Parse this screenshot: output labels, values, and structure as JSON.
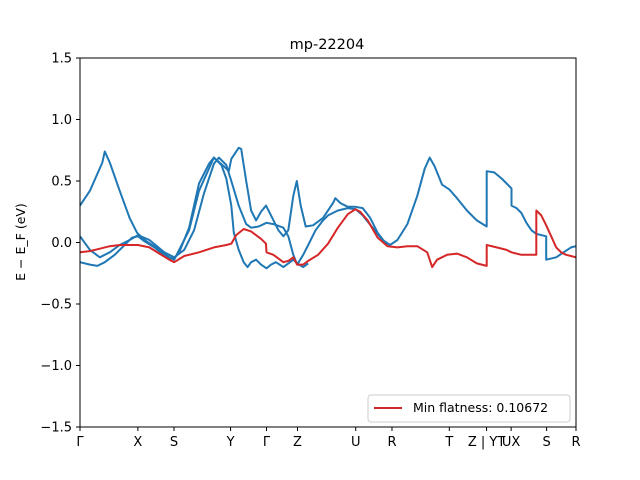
{
  "chart_data": {
    "type": "line",
    "title": "mp-22204",
    "xlabel": "",
    "ylabel": "E − E_F (eV)",
    "ylim": [
      -1.5,
      1.5
    ],
    "yticks": [
      -1.5,
      -1.0,
      -0.5,
      0.0,
      0.5,
      1.0,
      1.5
    ],
    "ytick_labels": [
      "−1.5",
      "−1.0",
      "−0.5",
      "0.0",
      "0.5",
      "1.0",
      "1.5"
    ],
    "xlim": [
      0,
      1
    ],
    "xticks": [
      0.0,
      0.1167,
      0.1895,
      0.3036,
      0.376,
      0.4385,
      0.5559,
      0.629,
      0.7446,
      0.8197,
      0.8692,
      0.9408,
      1.0
    ],
    "xtick_labels": [
      "Γ",
      "X",
      "S",
      "Y",
      "Γ",
      "Z",
      "U",
      "R",
      "T",
      "Z | YT",
      "UX",
      "S",
      "R"
    ],
    "legend": {
      "entries": [
        "Min flatness: 0.10672"
      ],
      "placement": "lower right"
    },
    "colors": {
      "band": "#1f77b4",
      "flat_band": "#d62728"
    },
    "series": [
      {
        "color": "#1f77b4",
        "points": [
          [
            0,
            0.3
          ],
          [
            0.02,
            0.42
          ],
          [
            0.045,
            0.65
          ],
          [
            0.05,
            0.74
          ],
          [
            0.06,
            0.65
          ],
          [
            0.08,
            0.42
          ],
          [
            0.1,
            0.2
          ],
          [
            0.115,
            0.08
          ],
          [
            0.13,
            0.02
          ],
          [
            0.16,
            -0.06
          ],
          [
            0.18,
            -0.12
          ],
          [
            0.19,
            -0.14
          ],
          [
            0.22,
            0.1
          ],
          [
            0.24,
            0.42
          ],
          [
            0.27,
            0.69
          ],
          [
            0.29,
            0.62
          ],
          [
            0.3,
            0.58
          ],
          [
            0.305,
            0.68
          ],
          [
            0.32,
            0.77
          ],
          [
            0.325,
            0.76
          ],
          [
            0.335,
            0.5
          ],
          [
            0.345,
            0.26
          ],
          [
            0.355,
            0.18
          ],
          [
            0.365,
            0.25
          ],
          [
            0.375,
            0.3
          ],
          [
            0.385,
            0.22
          ],
          [
            0.4,
            0.1
          ],
          [
            0.41,
            0.05
          ],
          [
            0.42,
            0.1
          ],
          [
            0.43,
            0.38
          ],
          [
            0.437,
            0.5
          ],
          [
            0.445,
            0.3
          ],
          [
            0.455,
            0.13
          ],
          [
            0.47,
            0.14
          ],
          [
            0.49,
            0.2
          ],
          [
            0.51,
            0.32
          ],
          [
            0.515,
            0.36
          ],
          [
            0.525,
            0.32
          ],
          [
            0.54,
            0.29
          ],
          [
            0.555,
            0.29
          ],
          [
            0.57,
            0.28
          ],
          [
            0.585,
            0.2
          ],
          [
            0.6,
            0.08
          ],
          [
            0.615,
            0.0
          ],
          [
            0.625,
            -0.02
          ],
          [
            0.64,
            0.02
          ],
          [
            0.66,
            0.15
          ],
          [
            0.68,
            0.38
          ],
          [
            0.695,
            0.6
          ],
          [
            0.705,
            0.69
          ],
          [
            0.715,
            0.62
          ],
          [
            0.73,
            0.47
          ],
          [
            0.745,
            0.43
          ],
          [
            0.76,
            0.36
          ],
          [
            0.78,
            0.26
          ],
          [
            0.8,
            0.18
          ],
          [
            0.82,
            0.13
          ],
          [
            0.82,
            0.58
          ],
          [
            0.835,
            0.57
          ],
          [
            0.85,
            0.52
          ],
          [
            0.86,
            0.48
          ],
          [
            0.87,
            0.44
          ],
          [
            0.87,
            0.3
          ],
          [
            0.88,
            0.28
          ],
          [
            0.89,
            0.24
          ],
          [
            0.9,
            0.16
          ],
          [
            0.91,
            0.1
          ],
          [
            0.92,
            0.07
          ],
          [
            0.94,
            0.05
          ],
          [
            0.94,
            -0.14
          ],
          [
            0.96,
            -0.12
          ],
          [
            0.975,
            -0.08
          ],
          [
            0.99,
            -0.04
          ],
          [
            1.0,
            -0.03
          ]
        ]
      },
      {
        "color": "#1f77b4",
        "points": [
          [
            0,
            0.05
          ],
          [
            0.02,
            -0.06
          ],
          [
            0.04,
            -0.12
          ],
          [
            0.06,
            -0.08
          ],
          [
            0.08,
            -0.02
          ],
          [
            0.1,
            0.02
          ],
          [
            0.117,
            0.06
          ],
          [
            0.14,
            0.02
          ],
          [
            0.17,
            -0.08
          ],
          [
            0.19,
            -0.12
          ],
          [
            0.21,
            -0.06
          ],
          [
            0.23,
            0.1
          ],
          [
            0.25,
            0.4
          ],
          [
            0.27,
            0.64
          ],
          [
            0.28,
            0.69
          ],
          [
            0.295,
            0.63
          ],
          [
            0.305,
            0.5
          ],
          [
            0.32,
            0.3
          ],
          [
            0.335,
            0.15
          ],
          [
            0.345,
            0.12
          ],
          [
            0.36,
            0.13
          ],
          [
            0.376,
            0.16
          ],
          [
            0.39,
            0.15
          ],
          [
            0.41,
            0.12
          ],
          [
            0.42,
            0.05
          ],
          [
            0.43,
            -0.1
          ],
          [
            0.438,
            -0.18
          ],
          [
            0.45,
            -0.1
          ],
          [
            0.46,
            -0.02
          ],
          [
            0.475,
            0.1
          ],
          [
            0.49,
            0.18
          ],
          [
            0.5,
            0.22
          ],
          [
            0.52,
            0.26
          ],
          [
            0.54,
            0.28
          ],
          [
            0.556,
            0.27
          ],
          [
            0.57,
            0.22
          ],
          [
            0.59,
            0.12
          ],
          [
            0.61,
            0.02
          ],
          [
            0.625,
            -0.02
          ]
        ]
      },
      {
        "color": "#1f77b4",
        "points": [
          [
            0,
            -0.16
          ],
          [
            0.02,
            -0.18
          ],
          [
            0.035,
            -0.19
          ],
          [
            0.05,
            -0.16
          ],
          [
            0.07,
            -0.1
          ],
          [
            0.09,
            -0.02
          ],
          [
            0.105,
            0.04
          ],
          [
            0.117,
            0.05
          ],
          [
            0.13,
            0.01
          ],
          [
            0.15,
            -0.04
          ],
          [
            0.175,
            -0.12
          ],
          [
            0.19,
            -0.13
          ],
          [
            0.2,
            -0.08
          ],
          [
            0.22,
            0.12
          ],
          [
            0.24,
            0.48
          ],
          [
            0.26,
            0.64
          ],
          [
            0.27,
            0.69
          ],
          [
            0.285,
            0.63
          ],
          [
            0.295,
            0.52
          ],
          [
            0.305,
            0.3
          ],
          [
            0.31,
            0.08
          ],
          [
            0.32,
            -0.06
          ],
          [
            0.33,
            -0.16
          ],
          [
            0.338,
            -0.2
          ],
          [
            0.345,
            -0.16
          ],
          [
            0.355,
            -0.14
          ],
          [
            0.365,
            -0.18
          ],
          [
            0.376,
            -0.21
          ],
          [
            0.385,
            -0.18
          ],
          [
            0.395,
            -0.16
          ],
          [
            0.41,
            -0.2
          ],
          [
            0.42,
            -0.17
          ],
          [
            0.43,
            -0.14
          ],
          [
            0.438,
            -0.17
          ],
          [
            0.45,
            -0.2
          ],
          [
            0.46,
            -0.17
          ]
        ]
      },
      {
        "color": "#d62728",
        "points": [
          [
            0,
            -0.08
          ],
          [
            0.02,
            -0.07
          ],
          [
            0.04,
            -0.05
          ],
          [
            0.06,
            -0.03
          ],
          [
            0.08,
            -0.02
          ],
          [
            0.1,
            -0.02
          ],
          [
            0.117,
            -0.02
          ],
          [
            0.14,
            -0.04
          ],
          [
            0.16,
            -0.09
          ],
          [
            0.18,
            -0.14
          ],
          [
            0.19,
            -0.16
          ],
          [
            0.21,
            -0.11
          ],
          [
            0.24,
            -0.08
          ],
          [
            0.27,
            -0.04
          ],
          [
            0.295,
            -0.02
          ],
          [
            0.305,
            -0.01
          ],
          [
            0.315,
            0.06
          ],
          [
            0.33,
            0.11
          ],
          [
            0.345,
            0.09
          ],
          [
            0.365,
            0.03
          ],
          [
            0.375,
            -0.01
          ],
          [
            0.376,
            -0.08
          ],
          [
            0.39,
            -0.1
          ],
          [
            0.41,
            -0.16
          ],
          [
            0.42,
            -0.15
          ],
          [
            0.43,
            -0.12
          ],
          [
            0.438,
            -0.18
          ],
          [
            0.45,
            -0.18
          ],
          [
            0.46,
            -0.15
          ],
          [
            0.48,
            -0.1
          ],
          [
            0.5,
            -0.01
          ],
          [
            0.52,
            0.12
          ],
          [
            0.54,
            0.23
          ],
          [
            0.555,
            0.27
          ],
          [
            0.565,
            0.25
          ],
          [
            0.58,
            0.18
          ],
          [
            0.6,
            0.04
          ],
          [
            0.62,
            -0.03
          ],
          [
            0.64,
            -0.04
          ],
          [
            0.66,
            -0.03
          ],
          [
            0.68,
            -0.03
          ],
          [
            0.7,
            -0.08
          ],
          [
            0.71,
            -0.2
          ],
          [
            0.72,
            -0.14
          ],
          [
            0.74,
            -0.1
          ],
          [
            0.76,
            -0.09
          ],
          [
            0.78,
            -0.12
          ],
          [
            0.8,
            -0.17
          ],
          [
            0.82,
            -0.19
          ],
          [
            0.82,
            -0.02
          ],
          [
            0.84,
            -0.04
          ],
          [
            0.86,
            -0.06
          ],
          [
            0.87,
            -0.08
          ],
          [
            0.88,
            -0.09
          ],
          [
            0.89,
            -0.1
          ],
          [
            0.9,
            -0.1
          ],
          [
            0.91,
            -0.1
          ],
          [
            0.92,
            -0.1
          ],
          [
            0.92,
            0.26
          ],
          [
            0.93,
            0.22
          ],
          [
            0.94,
            0.14
          ],
          [
            0.95,
            0.05
          ],
          [
            0.96,
            -0.04
          ],
          [
            0.97,
            -0.08
          ],
          [
            0.98,
            -0.1
          ],
          [
            0.99,
            -0.11
          ],
          [
            1.0,
            -0.12
          ]
        ]
      }
    ]
  }
}
